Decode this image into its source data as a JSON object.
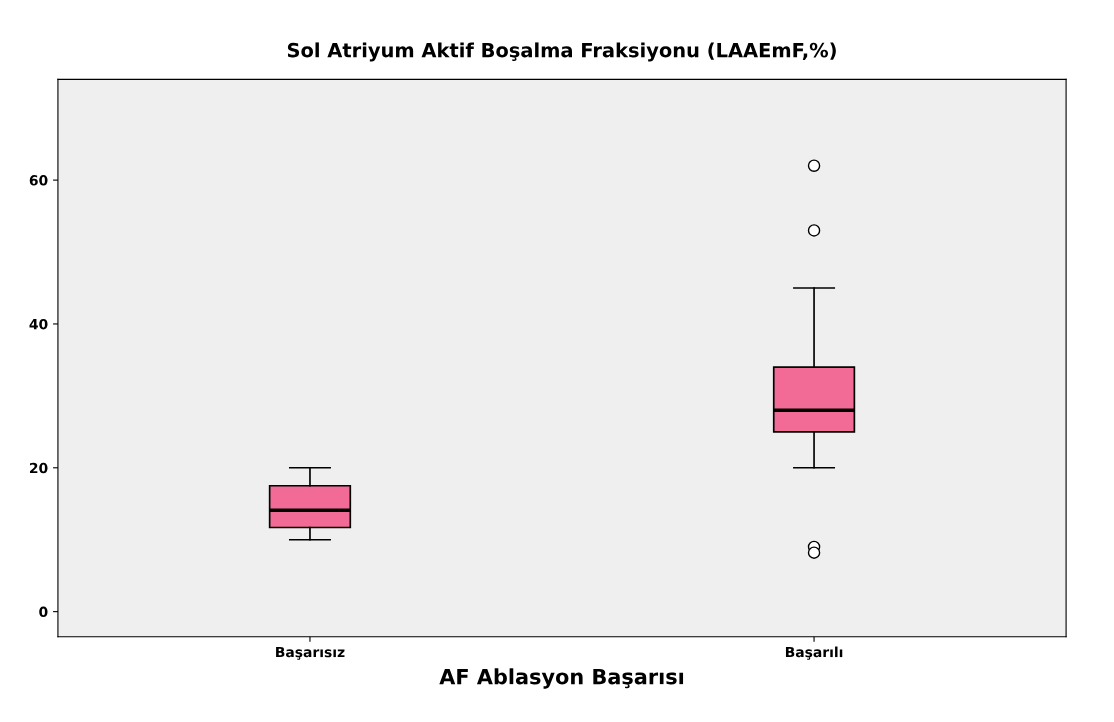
{
  "chart_data": {
    "type": "box",
    "title": "Sol Atriyum Aktif Boşalma Fraksiyonu (LAAEmF,%)",
    "xlabel": "AF Ablasyon Başarısı",
    "categories": [
      "Başarısız",
      "Başarılı"
    ],
    "color": "#f26a96",
    "boxes": [
      {
        "low": 10,
        "q1": 11.7,
        "median": 14.1,
        "q3": 17.5,
        "high": 20
      },
      {
        "low": 20,
        "q1": 25,
        "median": 28,
        "q3": 34,
        "high": 45,
        "outliers": [
          62,
          53,
          9,
          8.2
        ]
      }
    ],
    "ylim": [
      -3.5,
      74
    ],
    "yticks": [
      0,
      20,
      40,
      60
    ],
    "grid": false
  }
}
